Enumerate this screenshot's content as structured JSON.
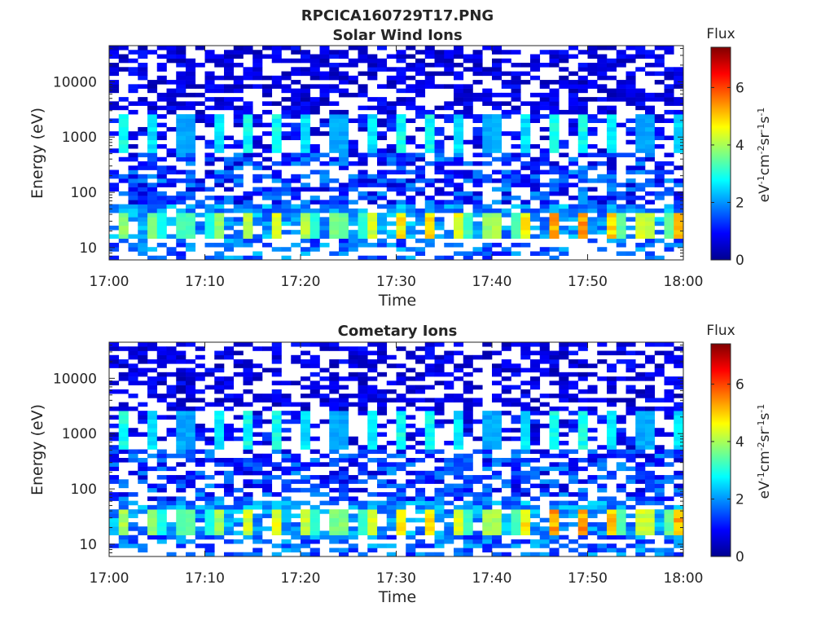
{
  "figure": {
    "title": "RPCICA160729T17.PNG"
  },
  "chart_data": [
    {
      "type": "heatmap",
      "title": "Solar Wind Ions",
      "xlabel": "Time",
      "ylabel": "Energy (eV)",
      "x_ticks": [
        "17:00",
        "17:10",
        "17:20",
        "17:30",
        "17:40",
        "17:50",
        "18:00"
      ],
      "y_ticks": [
        "10",
        "100",
        "1000",
        "10000"
      ],
      "y_scale": "log",
      "xlim": [
        "17:00",
        "18:00"
      ],
      "ylim": [
        6,
        45000
      ],
      "colorbar": {
        "title": "Flux",
        "label": "eV-1cm-2sr-1s-1",
        "ticks": [
          "0",
          "2",
          "4",
          "6"
        ],
        "range": [
          0,
          7.4
        ],
        "colormap": "jet"
      },
      "features": {
        "pulse_period_min": 3.2,
        "band_1000eV_peak_flux": 3.0,
        "band_25eV_peak_flux_start": 3.8,
        "band_25eV_peak_flux_end": 5.8
      }
    },
    {
      "type": "heatmap",
      "title": "Cometary Ions",
      "xlabel": "Time",
      "ylabel": "Energy (eV)",
      "x_ticks": [
        "17:00",
        "17:10",
        "17:20",
        "17:30",
        "17:40",
        "17:50",
        "18:00"
      ],
      "y_ticks": [
        "10",
        "100",
        "1000",
        "10000"
      ],
      "y_scale": "log",
      "xlim": [
        "17:00",
        "18:00"
      ],
      "ylim": [
        6,
        45000
      ],
      "colorbar": {
        "title": "Flux",
        "label": "eV-1cm-2sr-1s-1",
        "ticks": [
          "0",
          "2",
          "4",
          "6"
        ],
        "range": [
          0,
          7.4
        ],
        "colormap": "jet"
      },
      "features": {
        "pulse_period_min": 3.2,
        "band_1000eV_peak_flux": 3.0,
        "band_25eV_peak_flux_start": 4.0,
        "band_25eV_peak_flux_end": 5.8
      }
    }
  ]
}
